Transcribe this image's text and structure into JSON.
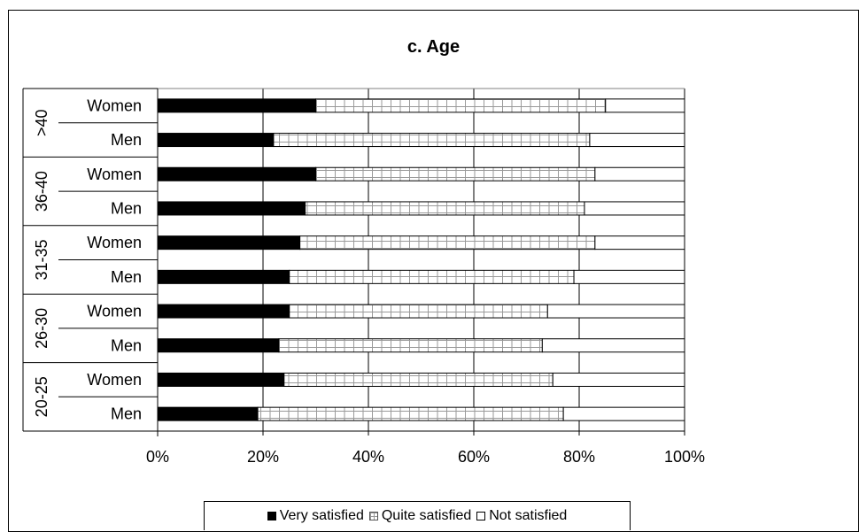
{
  "chart_data": {
    "type": "bar",
    "orientation": "horizontal",
    "stacked": "percent",
    "title": "c. Age",
    "xlim": [
      0,
      100
    ],
    "x_ticks": [
      "0%",
      "20%",
      "40%",
      "60%",
      "80%",
      "100%"
    ],
    "grid": true,
    "legend_position": "bottom",
    "groups": [
      {
        "label": ">40",
        "rows": [
          "Women",
          "Men"
        ]
      },
      {
        "label": "36-40",
        "rows": [
          "Women",
          "Men"
        ]
      },
      {
        "label": "31-35",
        "rows": [
          "Women",
          "Men"
        ]
      },
      {
        "label": "26-30",
        "rows": [
          "Women",
          "Men"
        ]
      },
      {
        "label": "20-25",
        "rows": [
          "Women",
          "Men"
        ]
      }
    ],
    "categories": [
      ">40 Women",
      ">40 Men",
      "36-40 Women",
      "36-40 Men",
      "31-35 Women",
      "31-35 Men",
      "26-30 Women",
      "26-30 Men",
      "20-25 Women",
      "20-25 Men"
    ],
    "series": [
      {
        "name": "Very satisfied",
        "color": "#000000",
        "pattern": "solid",
        "values": [
          30,
          22,
          30,
          28,
          27,
          25,
          25,
          23,
          24,
          19
        ]
      },
      {
        "name": "Quite satisfied",
        "color": "#ffffff",
        "pattern": "grid",
        "values": [
          55,
          60,
          53,
          53,
          56,
          54,
          49,
          50,
          51,
          58
        ]
      },
      {
        "name": "Not satisfied",
        "color": "#ffffff",
        "pattern": "solid",
        "values": [
          15,
          18,
          17,
          19,
          17,
          21,
          26,
          27,
          25,
          23
        ]
      }
    ]
  }
}
